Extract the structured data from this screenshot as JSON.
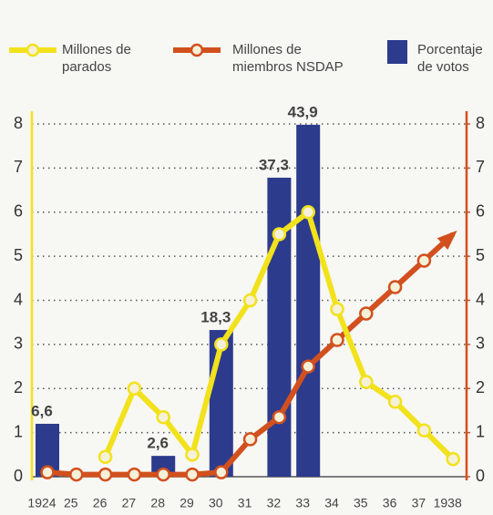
{
  "chart_data": {
    "type": "bar_line",
    "categories": [
      "1924",
      "25",
      "26",
      "27",
      "28",
      "29",
      "30",
      "31",
      "32",
      "33",
      "34",
      "35",
      "36",
      "37",
      "1938"
    ],
    "series": [
      {
        "name": "Millones de parados",
        "color": "#f2e21c",
        "type": "line",
        "axis": "y",
        "values": [
          null,
          null,
          0.45,
          2.0,
          1.35,
          0.5,
          3.0,
          4.0,
          5.5,
          6.0,
          3.8,
          2.15,
          1.7,
          1.05,
          0.4
        ]
      },
      {
        "name": "Millones de miembros NSDAP",
        "color": "#d2501e",
        "type": "line",
        "axis": "y2",
        "values": [
          0.1,
          0.05,
          0.05,
          0.05,
          0.05,
          0.05,
          0.1,
          0.85,
          1.35,
          2.5,
          3.1,
          3.7,
          4.3,
          4.9,
          5.5
        ]
      },
      {
        "name": "Porcentaje de votos",
        "color": "#2d3b8c",
        "type": "bar",
        "axis": "y3",
        "values": [
          6.6,
          null,
          null,
          null,
          2.6,
          null,
          18.3,
          null,
          37.3,
          43.9,
          null,
          null,
          null,
          null,
          null
        ],
        "value_labels": [
          "6,6",
          null,
          null,
          null,
          "2,6",
          null,
          "18,3",
          null,
          "37,3",
          "43,9",
          null,
          null,
          null,
          null,
          null
        ]
      }
    ],
    "ylim": [
      0,
      8
    ],
    "yticks": [
      0,
      1,
      2,
      3,
      4,
      5,
      6,
      7,
      8
    ],
    "y2lim": [
      0,
      8
    ],
    "y2ticks": [
      0,
      1,
      2,
      3,
      4,
      5,
      6,
      7,
      8
    ],
    "y3lim": [
      0,
      44
    ],
    "grid": true
  }
}
